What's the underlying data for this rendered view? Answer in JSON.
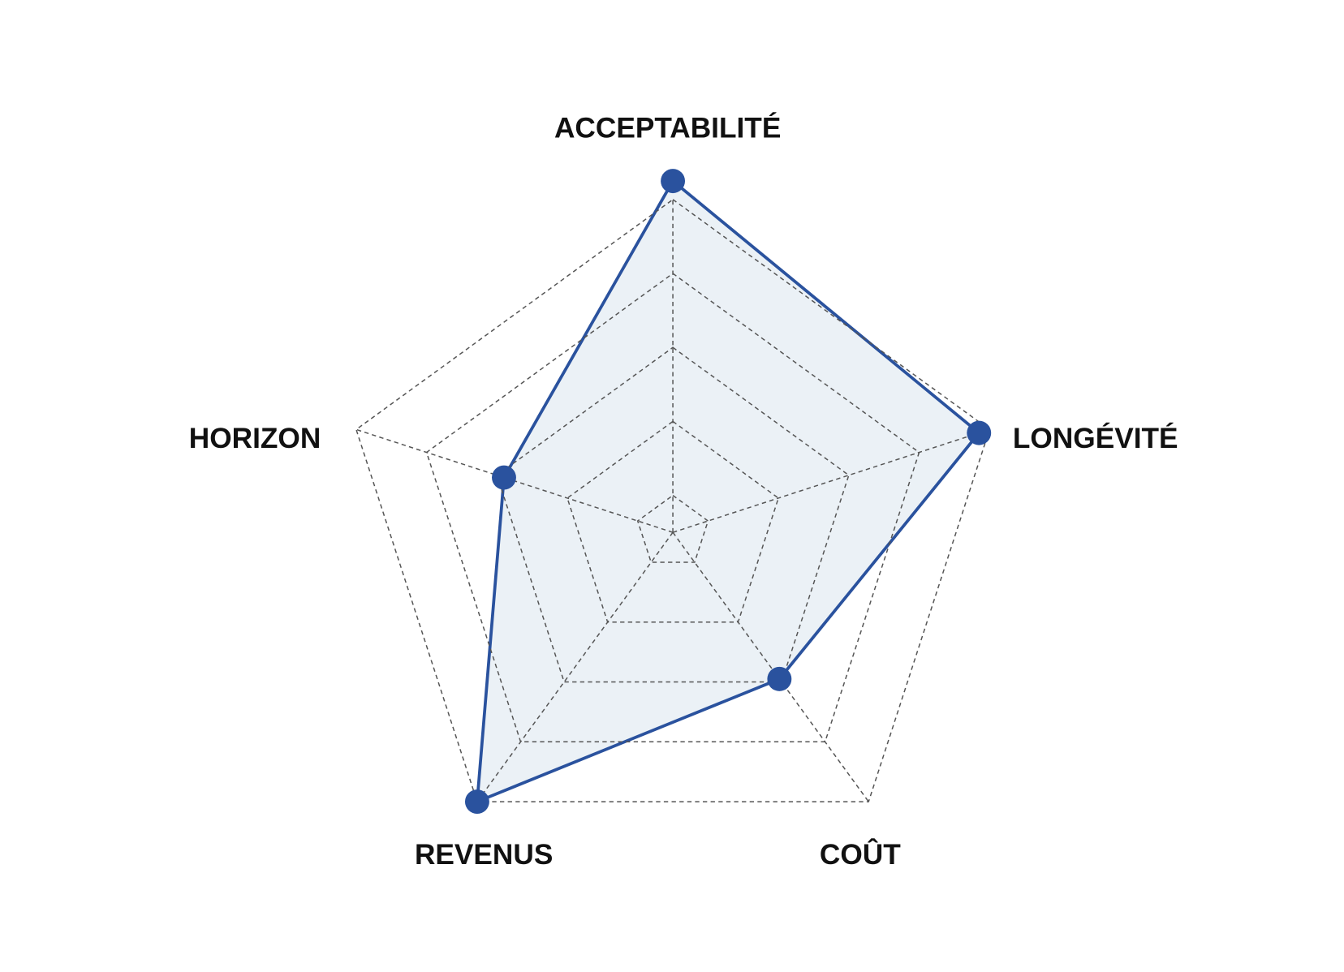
{
  "chart_data": {
    "type": "radar",
    "categories": [
      "ACCEPTABILITÉ",
      "LONGÉVITÉ",
      "COÛT",
      "REVENUS",
      "HORIZON"
    ],
    "values": [
      5.25,
      4.85,
      2.95,
      5,
      2.9
    ],
    "color": "#2a529e",
    "fill": "#e8eef5",
    "rlim": [
      0.5,
      5
    ],
    "rticks": [
      1,
      2,
      3,
      4,
      5
    ],
    "grid": true
  }
}
